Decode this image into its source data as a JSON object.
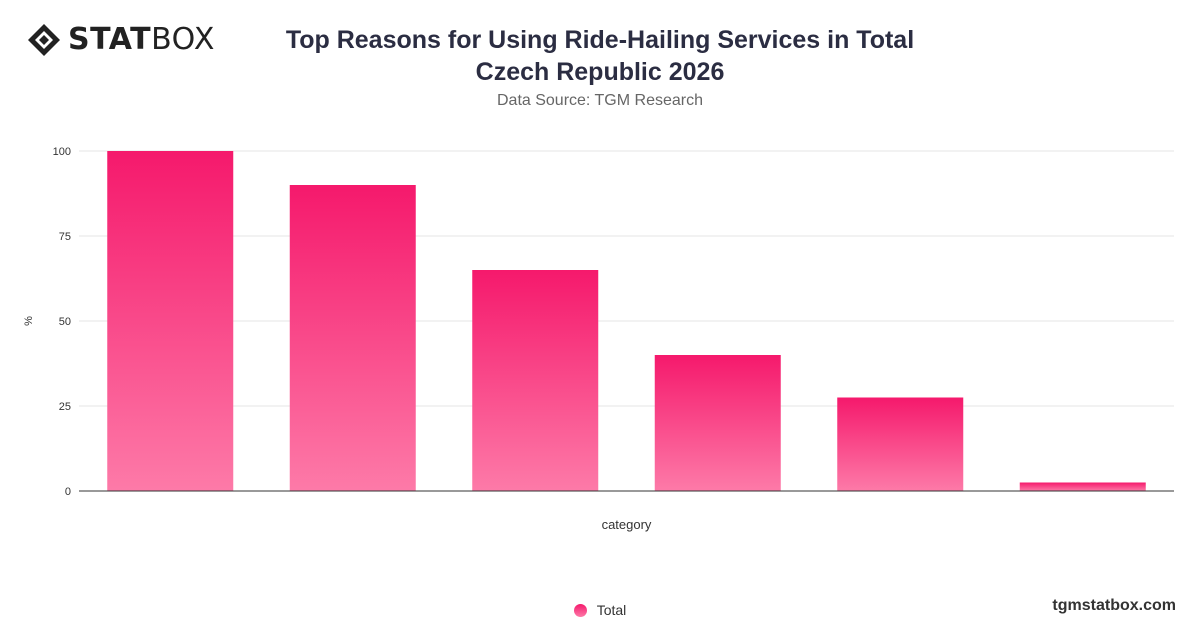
{
  "brand": {
    "logo_bold": "STAT",
    "logo_light": "BOX",
    "watermark": "tgmstatbox.com"
  },
  "header": {
    "title_line1": "Top Reasons for Using Ride-Hailing Services in Total",
    "title_line2": "Czech Republic 2026",
    "subtitle": "Data Source: TGM Research"
  },
  "colors": {
    "bar_top": "#f5196c",
    "bar_bottom": "#fd7aa8",
    "grid": "#e6e6e6",
    "axis": "#333333"
  },
  "chart_data": {
    "type": "bar",
    "categories": [
      "",
      "",
      "",
      "",
      "",
      ""
    ],
    "series": [
      {
        "name": "Total",
        "values": [
          100,
          90,
          65,
          40,
          27.5,
          2.5
        ]
      }
    ],
    "xlabel": "category",
    "ylabel": "%",
    "ylim": [
      0,
      100
    ],
    "yticks": [
      0,
      25,
      50,
      75,
      100
    ],
    "grid": true,
    "legend": "bottom-center"
  }
}
